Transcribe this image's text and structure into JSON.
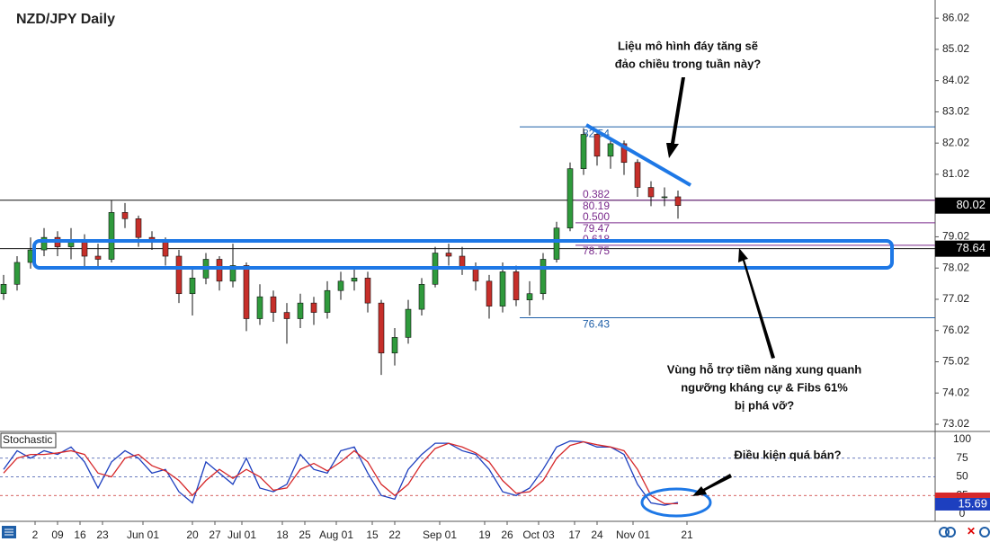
{
  "chart_data": {
    "type": "candlestick",
    "title": "NZD/JPY Daily",
    "x": [
      0,
      3,
      6,
      9,
      12,
      15,
      18,
      21,
      24,
      27,
      30,
      33,
      36,
      39,
      42,
      45,
      48,
      51,
      54,
      57,
      60,
      63,
      66,
      69,
      72,
      75,
      78,
      81,
      84,
      87,
      90,
      93,
      96,
      99,
      102,
      105,
      108,
      111,
      114,
      117,
      120,
      123,
      126,
      129,
      132,
      135,
      138,
      141,
      144,
      147,
      150
    ],
    "open": [
      77.2,
      77.5,
      78.2,
      78.6,
      79.0,
      78.7,
      78.9,
      78.4,
      78.3,
      79.8,
      79.6,
      79.0,
      78.9,
      78.4,
      77.2,
      77.7,
      78.3,
      77.6,
      78.1,
      76.4,
      77.1,
      76.6,
      76.4,
      76.9,
      76.6,
      77.3,
      77.6,
      77.7,
      76.9,
      75.3,
      75.8,
      76.7,
      77.5,
      78.5,
      78.4,
      78.0,
      77.6,
      76.8,
      77.9,
      77.0,
      77.2,
      78.3,
      79.3,
      81.2,
      82.3,
      81.6,
      82.0,
      81.4,
      80.6,
      80.3,
      80.3
    ],
    "high": [
      77.8,
      78.4,
      79.0,
      79.3,
      79.2,
      79.3,
      79.1,
      78.8,
      80.2,
      80.1,
      79.7,
      79.2,
      79.0,
      78.6,
      78.0,
      78.5,
      78.4,
      78.8,
      78.2,
      77.5,
      77.3,
      76.9,
      77.2,
      77.1,
      77.6,
      77.9,
      78.0,
      77.9,
      77.0,
      76.1,
      77.0,
      77.7,
      78.7,
      78.8,
      78.7,
      78.2,
      77.8,
      78.2,
      78.1,
      77.6,
      78.5,
      79.5,
      81.4,
      82.5,
      82.4,
      82.2,
      82.1,
      81.5,
      80.8,
      80.6,
      80.5
    ],
    "low": [
      77.0,
      77.3,
      78.0,
      78.4,
      78.4,
      78.3,
      78.0,
      78.0,
      78.2,
      79.3,
      78.7,
      78.6,
      78.1,
      76.9,
      76.5,
      77.5,
      77.3,
      77.4,
      76.0,
      76.2,
      76.3,
      75.6,
      76.1,
      76.2,
      76.4,
      77.0,
      77.3,
      76.6,
      74.6,
      74.9,
      75.6,
      76.5,
      77.4,
      78.1,
      77.8,
      77.3,
      76.4,
      76.6,
      76.8,
      76.5,
      77.0,
      78.2,
      79.2,
      81.0,
      81.3,
      81.2,
      81.0,
      80.3,
      80.0,
      80.0,
      79.6
    ],
    "close": [
      77.5,
      78.2,
      78.6,
      79.0,
      78.7,
      78.9,
      78.4,
      78.3,
      79.8,
      79.6,
      79.0,
      78.9,
      78.4,
      77.2,
      77.7,
      78.3,
      77.6,
      78.1,
      76.4,
      77.1,
      76.6,
      76.4,
      76.9,
      76.6,
      77.3,
      77.6,
      77.7,
      76.9,
      75.3,
      75.8,
      76.7,
      77.5,
      78.5,
      78.4,
      78.0,
      77.6,
      76.8,
      77.9,
      77.0,
      77.2,
      78.3,
      79.3,
      81.2,
      82.3,
      81.6,
      82.0,
      81.4,
      80.6,
      80.3,
      80.3,
      80.02
    ],
    "up_color": "#2f9a3c",
    "down_color": "#c62f2a",
    "xlim": [
      -0.8,
      207.2
    ],
    "xticks": [
      {
        "value": 7,
        "label": "2"
      },
      {
        "value": 12,
        "label": "09"
      },
      {
        "value": 17,
        "label": "16"
      },
      {
        "value": 22,
        "label": "23"
      },
      {
        "value": 31,
        "label": "Jun 01"
      },
      {
        "value": 42,
        "label": "20"
      },
      {
        "value": 47,
        "label": "27"
      },
      {
        "value": 53,
        "label": "Jul 01"
      },
      {
        "value": 62,
        "label": "18"
      },
      {
        "value": 67,
        "label": "25"
      },
      {
        "value": 74,
        "label": "Aug 01"
      },
      {
        "value": 82,
        "label": "15"
      },
      {
        "value": 87,
        "label": "22"
      },
      {
        "value": 97,
        "label": "Sep 01"
      },
      {
        "value": 107,
        "label": "19"
      },
      {
        "value": 112,
        "label": "26"
      },
      {
        "value": 119,
        "label": "Oct 03"
      },
      {
        "value": 127,
        "label": "17"
      },
      {
        "value": 132,
        "label": "24"
      },
      {
        "value": 140,
        "label": "Nov 01"
      },
      {
        "value": 152,
        "label": "21"
      }
    ],
    "ylim": [
      72.79,
      86.6
    ],
    "yticks": [
      86.02,
      85.02,
      84.02,
      83.02,
      82.02,
      81.02,
      80.02,
      79.02,
      78.02,
      77.02,
      76.02,
      75.02,
      74.02,
      73.02
    ],
    "price_markers": [
      80.02,
      78.64
    ],
    "horizontal_lines": [
      80.19,
      78.64
    ],
    "levels": [
      {
        "value": 82.54,
        "label": "82.54"
      },
      {
        "value": 76.43,
        "label": "76.43"
      }
    ],
    "level_color": "#1f5fa8",
    "fibs": [
      {
        "ratio": "0.382",
        "value": 80.19,
        "label": "80.19"
      },
      {
        "ratio": "0.500",
        "value": 79.47,
        "label": "79.47"
      },
      {
        "ratio": "0.618",
        "value": 78.75,
        "label": "78.75"
      }
    ],
    "fib_color": "#7a2a8c",
    "annotations": [
      "Liệu mô hình đáy tăng sẽ",
      "đảo chiều trong tuần này?",
      "Vùng hỗ trợ tiềm năng xung quanh",
      "ngưỡng kháng cự & Fibs 61%",
      "bị phá vỡ?",
      "Điều kiện quá bán?"
    ],
    "stochastic": {
      "title": "Stochastic",
      "ylim": [
        -9.64,
        108.43
      ],
      "yticks": [
        0,
        25,
        50,
        75,
        100
      ],
      "series": [
        {
          "color": "#1d3fbf",
          "values": [
            60,
            85,
            75,
            85,
            80,
            90,
            70,
            35,
            70,
            85,
            75,
            55,
            60,
            30,
            15,
            70,
            55,
            40,
            75,
            35,
            30,
            40,
            80,
            60,
            55,
            85,
            90,
            55,
            25,
            20,
            60,
            80,
            95,
            95,
            85,
            80,
            60,
            30,
            25,
            35,
            60,
            90,
            98,
            97,
            90,
            90,
            80,
            40,
            15,
            12,
            15.69
          ]
        },
        {
          "color": "#d6282a",
          "values": [
            55,
            75,
            80,
            80,
            82,
            85,
            80,
            55,
            50,
            75,
            80,
            65,
            58,
            45,
            25,
            45,
            60,
            48,
            60,
            50,
            32,
            35,
            60,
            68,
            58,
            70,
            85,
            70,
            40,
            25,
            40,
            68,
            88,
            95,
            90,
            82,
            70,
            45,
            28,
            30,
            45,
            75,
            92,
            97,
            93,
            90,
            85,
            60,
            25,
            14,
            14
          ]
        }
      ]
    }
  }
}
